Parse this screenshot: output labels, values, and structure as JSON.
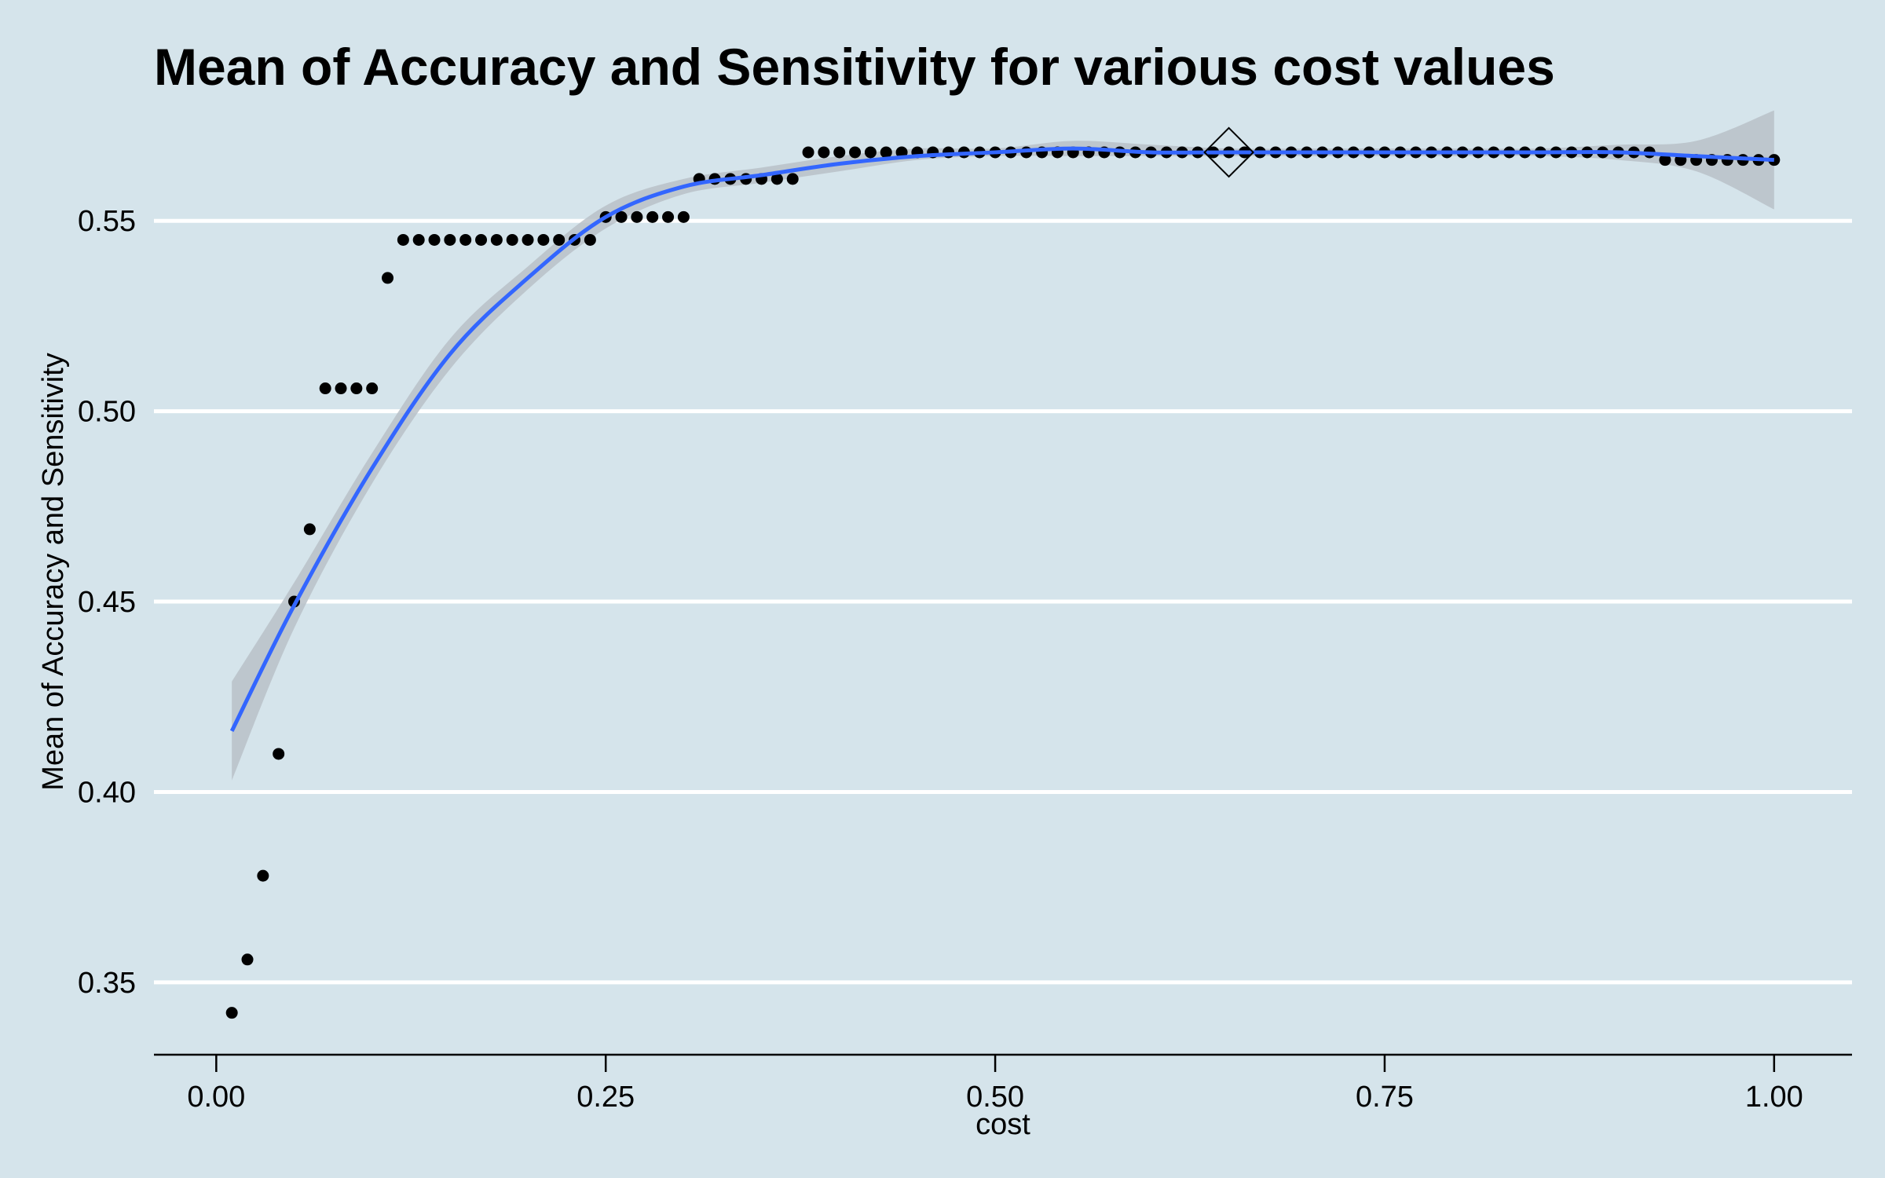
{
  "colors": {
    "background": "#d5e4eb",
    "gridline": "#ffffff",
    "point": "#000000",
    "smooth_line": "#3366ff",
    "confidence_band": "#b8c1c8"
  },
  "chart_data": {
    "type": "scatter",
    "title": "Mean of Accuracy and Sensitivity for various cost values",
    "xlabel": "cost",
    "ylabel": "Mean of Accuracy and Sensitivity",
    "xlim": [
      -0.04,
      1.05
    ],
    "ylim": [
      0.331,
      0.575
    ],
    "x_ticks": [
      0,
      0.25,
      0.5,
      0.75,
      1
    ],
    "x_tick_labels": [
      "0.00",
      "0.25",
      "0.50",
      "0.75",
      "1.00"
    ],
    "y_ticks": [
      0.35,
      0.4,
      0.45,
      0.5,
      0.55
    ],
    "y_tick_labels": [
      "0.35",
      "0.40",
      "0.45",
      "0.50",
      "0.55"
    ],
    "grid": "horizontal major lines only",
    "legend": "none",
    "series": [
      {
        "kind": "points",
        "x": [
          0.01,
          0.02,
          0.03,
          0.04,
          0.05,
          0.06,
          0.07,
          0.08,
          0.09,
          0.1,
          0.11,
          0.12,
          0.13,
          0.14,
          0.15,
          0.16,
          0.17,
          0.18,
          0.19,
          0.2,
          0.21,
          0.22,
          0.23,
          0.24,
          0.25,
          0.26,
          0.27,
          0.28,
          0.29,
          0.3,
          0.31,
          0.32,
          0.33,
          0.34,
          0.35,
          0.36,
          0.37,
          0.38,
          0.39,
          0.4,
          0.41,
          0.42,
          0.43,
          0.44,
          0.45,
          0.46,
          0.47,
          0.48,
          0.49,
          0.5,
          0.51,
          0.52,
          0.53,
          0.54,
          0.55,
          0.56,
          0.57,
          0.58,
          0.59,
          0.6,
          0.61,
          0.62,
          0.63,
          0.64,
          0.65,
          0.66,
          0.67,
          0.68,
          0.69,
          0.7,
          0.71,
          0.72,
          0.73,
          0.74,
          0.75,
          0.76,
          0.77,
          0.78,
          0.79,
          0.8,
          0.81,
          0.82,
          0.83,
          0.84,
          0.85,
          0.86,
          0.87,
          0.88,
          0.89,
          0.9,
          0.91,
          0.92,
          0.93,
          0.94,
          0.95,
          0.96,
          0.97,
          0.98,
          0.99,
          1.0
        ],
        "y": [
          0.342,
          0.356,
          0.378,
          0.41,
          0.45,
          0.469,
          0.506,
          0.506,
          0.506,
          0.506,
          0.535,
          0.545,
          0.545,
          0.545,
          0.545,
          0.545,
          0.545,
          0.545,
          0.545,
          0.545,
          0.545,
          0.545,
          0.545,
          0.545,
          0.551,
          0.551,
          0.551,
          0.551,
          0.551,
          0.551,
          0.561,
          0.561,
          0.561,
          0.561,
          0.561,
          0.561,
          0.561,
          0.568,
          0.568,
          0.568,
          0.568,
          0.568,
          0.568,
          0.568,
          0.568,
          0.568,
          0.568,
          0.568,
          0.568,
          0.568,
          0.568,
          0.568,
          0.568,
          0.568,
          0.568,
          0.568,
          0.568,
          0.568,
          0.568,
          0.568,
          0.568,
          0.568,
          0.568,
          0.568,
          0.568,
          0.568,
          0.568,
          0.568,
          0.568,
          0.568,
          0.568,
          0.568,
          0.568,
          0.568,
          0.568,
          0.568,
          0.568,
          0.568,
          0.568,
          0.568,
          0.568,
          0.568,
          0.568,
          0.568,
          0.568,
          0.568,
          0.568,
          0.568,
          0.568,
          0.568,
          0.568,
          0.568,
          0.566,
          0.566,
          0.566,
          0.566,
          0.566,
          0.566,
          0.566,
          0.566
        ]
      },
      {
        "kind": "smooth",
        "x": [
          0.01,
          0.05,
          0.1,
          0.15,
          0.2,
          0.25,
          0.3,
          0.35,
          0.4,
          0.45,
          0.5,
          0.55,
          0.6,
          0.65,
          0.7,
          0.75,
          0.8,
          0.85,
          0.9,
          0.95,
          1.0
        ],
        "y": [
          0.416,
          0.449,
          0.485,
          0.515,
          0.535,
          0.551,
          0.559,
          0.562,
          0.565,
          0.567,
          0.568,
          0.569,
          0.568,
          0.568,
          0.568,
          0.568,
          0.568,
          0.568,
          0.568,
          0.567,
          0.566
        ],
        "lower": [
          0.403,
          0.443,
          0.481,
          0.511,
          0.532,
          0.548,
          0.557,
          0.56,
          0.563,
          0.566,
          0.567,
          0.567,
          0.567,
          0.567,
          0.567,
          0.567,
          0.567,
          0.567,
          0.566,
          0.563,
          0.553
        ],
        "upper": [
          0.429,
          0.455,
          0.489,
          0.519,
          0.538,
          0.554,
          0.561,
          0.564,
          0.567,
          0.569,
          0.569,
          0.571,
          0.57,
          0.569,
          0.569,
          0.569,
          0.569,
          0.569,
          0.57,
          0.571,
          0.579
        ]
      },
      {
        "kind": "highlight",
        "marker": "diamond",
        "x": [
          0.65
        ],
        "y": [
          0.568
        ]
      }
    ]
  }
}
